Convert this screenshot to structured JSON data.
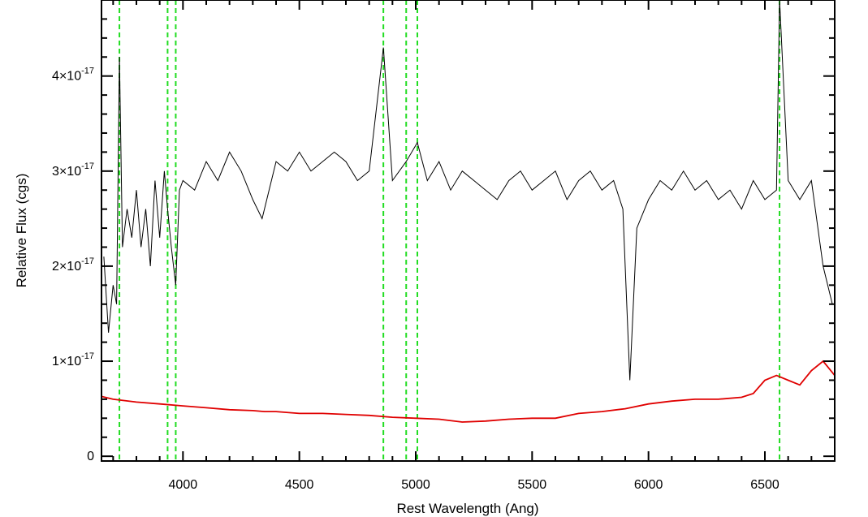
{
  "chart_data": {
    "type": "line",
    "xlabel": "Rest Wavelength (Ang)",
    "ylabel": "Relative Flux (cgs)",
    "xlim": [
      3650,
      6800
    ],
    "ylim": [
      -5e-19,
      4.8e-17
    ],
    "xticks": [
      4000,
      4500,
      5000,
      5500,
      6000,
      6500
    ],
    "yticks": [
      {
        "value": 0,
        "label": "0"
      },
      {
        "value": 1e-17,
        "mantissa": "1",
        "exponent": "-17"
      },
      {
        "value": 2e-17,
        "mantissa": "2",
        "exponent": "-17"
      },
      {
        "value": 3e-17,
        "mantissa": "3",
        "exponent": "-17"
      },
      {
        "value": 4e-17,
        "mantissa": "4",
        "exponent": "-17"
      }
    ],
    "vlines_dashed_green": [
      3727,
      3934,
      3969,
      4861,
      4959,
      5007,
      6563
    ],
    "series": [
      {
        "color": "#000000",
        "points": [
          [
            3660,
            2.1e-17
          ],
          [
            3680,
            1.3e-17
          ],
          [
            3700,
            1.8e-17
          ],
          [
            3715,
            1.6e-17
          ],
          [
            3727,
            4.2e-17
          ],
          [
            3740,
            2.2e-17
          ],
          [
            3760,
            2.6e-17
          ],
          [
            3780,
            2.3e-17
          ],
          [
            3800,
            2.8e-17
          ],
          [
            3820,
            2.2e-17
          ],
          [
            3840,
            2.6e-17
          ],
          [
            3860,
            2e-17
          ],
          [
            3880,
            2.9e-17
          ],
          [
            3900,
            2.3e-17
          ],
          [
            3920,
            3e-17
          ],
          [
            3934,
            2.6e-17
          ],
          [
            3950,
            2.2e-17
          ],
          [
            3969,
            1.8e-17
          ],
          [
            3985,
            2.8e-17
          ],
          [
            4000,
            2.9e-17
          ],
          [
            4050,
            2.8e-17
          ],
          [
            4100,
            3.1e-17
          ],
          [
            4150,
            2.9e-17
          ],
          [
            4200,
            3.2e-17
          ],
          [
            4250,
            3e-17
          ],
          [
            4300,
            2.7e-17
          ],
          [
            4340,
            2.5e-17
          ],
          [
            4400,
            3.1e-17
          ],
          [
            4450,
            3e-17
          ],
          [
            4500,
            3.2e-17
          ],
          [
            4550,
            3e-17
          ],
          [
            4600,
            3.1e-17
          ],
          [
            4650,
            3.2e-17
          ],
          [
            4700,
            3.1e-17
          ],
          [
            4750,
            2.9e-17
          ],
          [
            4800,
            3e-17
          ],
          [
            4861,
            4.3e-17
          ],
          [
            4900,
            2.9e-17
          ],
          [
            4959,
            3.1e-17
          ],
          [
            5007,
            3.3e-17
          ],
          [
            5050,
            2.9e-17
          ],
          [
            5100,
            3.1e-17
          ],
          [
            5150,
            2.8e-17
          ],
          [
            5200,
            3e-17
          ],
          [
            5250,
            2.9e-17
          ],
          [
            5300,
            2.8e-17
          ],
          [
            5350,
            2.7e-17
          ],
          [
            5400,
            2.9e-17
          ],
          [
            5450,
            3e-17
          ],
          [
            5500,
            2.8e-17
          ],
          [
            5550,
            2.9e-17
          ],
          [
            5600,
            3e-17
          ],
          [
            5650,
            2.7e-17
          ],
          [
            5700,
            2.9e-17
          ],
          [
            5750,
            3e-17
          ],
          [
            5800,
            2.8e-17
          ],
          [
            5850,
            2.9e-17
          ],
          [
            5890,
            2.6e-17
          ],
          [
            5920,
            8e-18
          ],
          [
            5950,
            2.4e-17
          ],
          [
            6000,
            2.7e-17
          ],
          [
            6050,
            2.9e-17
          ],
          [
            6100,
            2.8e-17
          ],
          [
            6150,
            3e-17
          ],
          [
            6200,
            2.8e-17
          ],
          [
            6250,
            2.9e-17
          ],
          [
            6300,
            2.7e-17
          ],
          [
            6350,
            2.8e-17
          ],
          [
            6400,
            2.6e-17
          ],
          [
            6450,
            2.9e-17
          ],
          [
            6500,
            2.7e-17
          ],
          [
            6550,
            2.8e-17
          ],
          [
            6563,
            4.8e-17
          ],
          [
            6600,
            2.9e-17
          ],
          [
            6650,
            2.7e-17
          ],
          [
            6700,
            2.9e-17
          ],
          [
            6750,
            2e-17
          ],
          [
            6790,
            1.6e-17
          ]
        ]
      },
      {
        "color": "#e00000",
        "points": [
          [
            3650,
            6.3e-18
          ],
          [
            3700,
            6e-18
          ],
          [
            3800,
            5.7e-18
          ],
          [
            3900,
            5.5e-18
          ],
          [
            4000,
            5.3e-18
          ],
          [
            4100,
            5.1e-18
          ],
          [
            4200,
            4.9e-18
          ],
          [
            4300,
            4.8e-18
          ],
          [
            4350,
            4.7e-18
          ],
          [
            4400,
            4.7e-18
          ],
          [
            4500,
            4.5e-18
          ],
          [
            4600,
            4.5e-18
          ],
          [
            4700,
            4.4e-18
          ],
          [
            4800,
            4.3e-18
          ],
          [
            4900,
            4.1e-18
          ],
          [
            5000,
            4e-18
          ],
          [
            5100,
            3.9e-18
          ],
          [
            5200,
            3.6e-18
          ],
          [
            5300,
            3.7e-18
          ],
          [
            5400,
            3.9e-18
          ],
          [
            5500,
            4e-18
          ],
          [
            5600,
            4e-18
          ],
          [
            5700,
            4.5e-18
          ],
          [
            5800,
            4.7e-18
          ],
          [
            5900,
            5e-18
          ],
          [
            6000,
            5.5e-18
          ],
          [
            6100,
            5.8e-18
          ],
          [
            6200,
            6e-18
          ],
          [
            6300,
            6e-18
          ],
          [
            6400,
            6.2e-18
          ],
          [
            6450,
            6.6e-18
          ],
          [
            6500,
            8e-18
          ],
          [
            6550,
            8.5e-18
          ],
          [
            6600,
            8e-18
          ],
          [
            6650,
            7.5e-18
          ],
          [
            6700,
            9e-18
          ],
          [
            6750,
            1e-17
          ],
          [
            6800,
            8.5e-18
          ]
        ]
      }
    ]
  }
}
